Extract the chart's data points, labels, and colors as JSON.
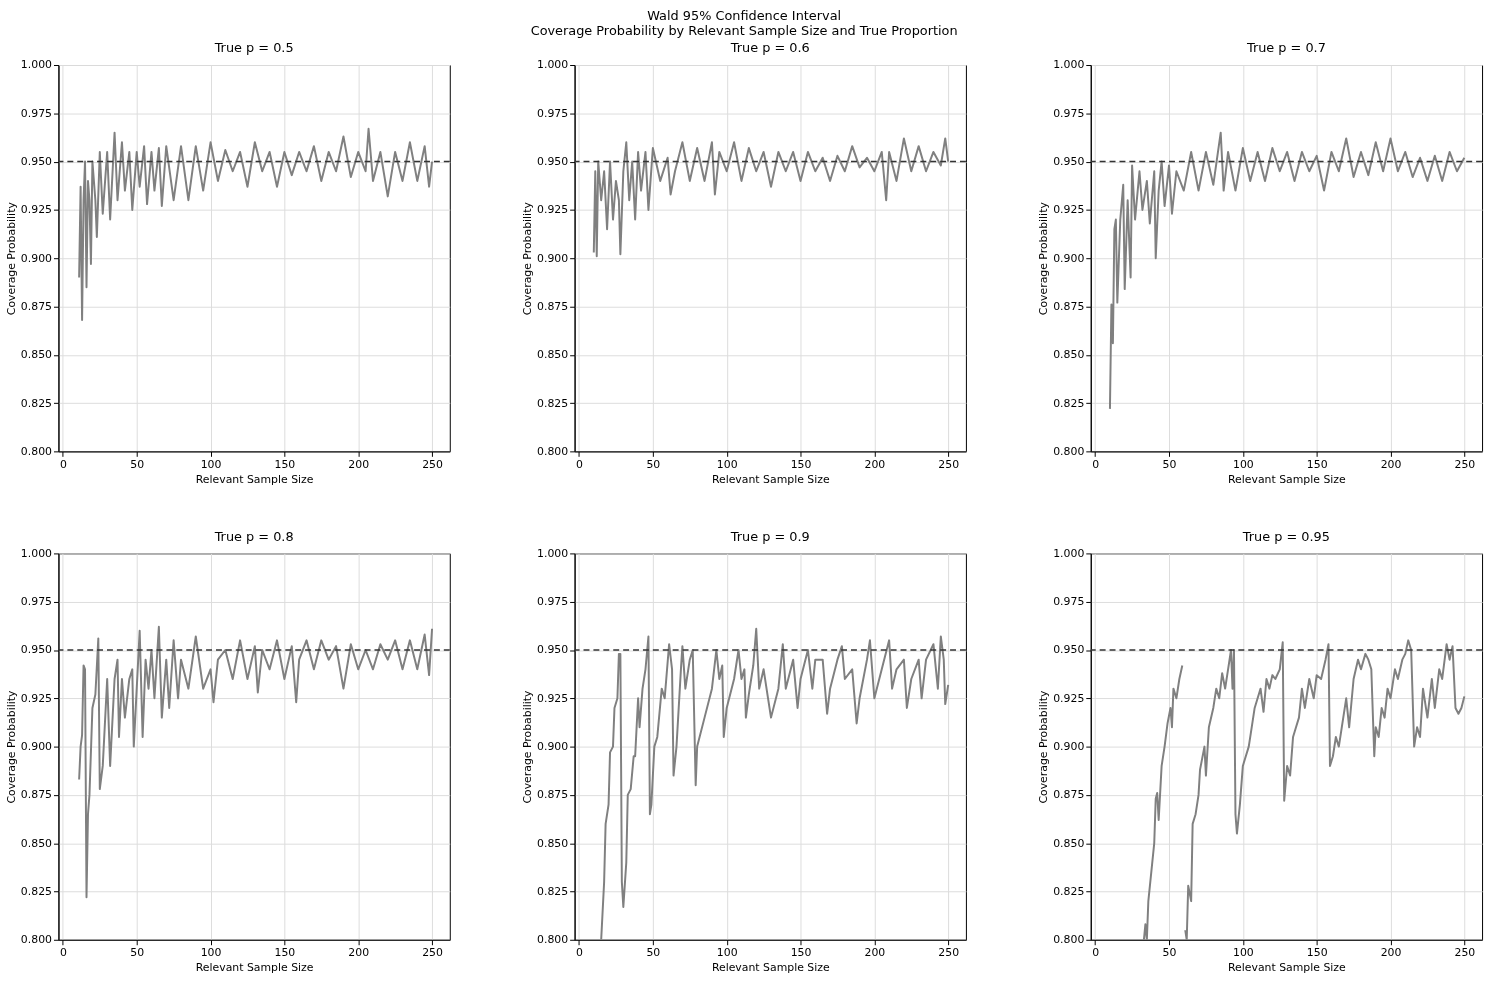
{
  "chart_data": [
    {
      "type": "line",
      "title": "True p = 0.5",
      "xlabel": "Relevant Sample Size",
      "ylabel": "Coverage Probability",
      "annotations": [
        "Wald 95% Confidence Interval",
        "Coverage Probability by Relevant Sample Size and True Proportion"
      ],
      "xlim": [
        -3,
        262
      ],
      "xticks": [
        0,
        50,
        100,
        150,
        200,
        250
      ],
      "ylim": [
        0.8,
        1.0
      ],
      "yticks": [
        {
          "value": 0.8,
          "label": "0.800"
        },
        {
          "value": 0.825,
          "label": "0.825"
        },
        {
          "value": 0.85,
          "label": "0.850"
        },
        {
          "value": 0.875,
          "label": "0.875"
        },
        {
          "value": 0.9,
          "label": "0.900"
        },
        {
          "value": 0.925,
          "label": "0.925"
        },
        {
          "value": 0.95,
          "label": "0.950"
        },
        {
          "value": 0.975,
          "label": "0.975"
        },
        {
          "value": 1.0,
          "label": "1.000"
        }
      ],
      "grid": true,
      "line_style": "solid",
      "ref_lines": [
        {
          "axis": "y",
          "value": 0.95,
          "color": "#333333",
          "line_style": "dashed"
        }
      ],
      "series": [
        {
          "color": "#808080",
          "x": [
            11,
            12,
            13,
            14,
            15,
            16,
            17,
            18,
            19,
            20,
            22,
            23,
            25,
            27,
            30,
            32,
            35,
            37,
            40,
            42,
            45,
            47,
            50,
            52,
            55,
            57,
            60,
            62,
            65,
            67,
            70,
            75,
            80,
            85,
            90,
            95,
            100,
            105,
            110,
            115,
            120,
            125,
            130,
            135,
            140,
            145,
            150,
            155,
            160,
            165,
            170,
            175,
            180,
            185,
            190,
            195,
            200,
            205,
            207,
            210,
            215,
            220,
            225,
            230,
            235,
            240,
            245,
            248,
            250
          ],
          "values": [
            0.89,
            0.937,
            0.868,
            0.93,
            0.95,
            0.885,
            0.94,
            0.93,
            0.897,
            0.95,
            0.93,
            0.911,
            0.955,
            0.923,
            0.955,
            0.92,
            0.965,
            0.93,
            0.96,
            0.935,
            0.955,
            0.925,
            0.955,
            0.937,
            0.958,
            0.928,
            0.955,
            0.935,
            0.957,
            0.927,
            0.958,
            0.93,
            0.958,
            0.93,
            0.958,
            0.935,
            0.96,
            0.94,
            0.956,
            0.945,
            0.955,
            0.937,
            0.96,
            0.945,
            0.955,
            0.937,
            0.955,
            0.943,
            0.955,
            0.945,
            0.958,
            0.94,
            0.955,
            0.945,
            0.963,
            0.942,
            0.955,
            0.945,
            0.967,
            0.94,
            0.955,
            0.932,
            0.955,
            0.94,
            0.96,
            0.94,
            0.958,
            0.937,
            0.95
          ]
        }
      ]
    },
    {
      "type": "line",
      "title": "True p = 0.6",
      "xlabel": "Relevant Sample Size",
      "ylabel": "Coverage Probability",
      "xlim": [
        -3,
        262
      ],
      "xticks": [
        0,
        50,
        100,
        150,
        200,
        250
      ],
      "ylim": [
        0.8,
        1.0
      ],
      "yticks": [
        {
          "value": 0.8,
          "label": "0.800"
        },
        {
          "value": 0.825,
          "label": "0.825"
        },
        {
          "value": 0.85,
          "label": "0.850"
        },
        {
          "value": 0.875,
          "label": "0.875"
        },
        {
          "value": 0.9,
          "label": "0.900"
        },
        {
          "value": 0.925,
          "label": "0.925"
        },
        {
          "value": 0.95,
          "label": "0.950"
        },
        {
          "value": 0.975,
          "label": "0.975"
        },
        {
          "value": 1.0,
          "label": "1.000"
        }
      ],
      "grid": true,
      "line_style": "solid",
      "ref_lines": [
        {
          "axis": "y",
          "value": 0.95,
          "color": "#333333",
          "line_style": "dashed"
        }
      ],
      "series": [
        {
          "color": "#808080",
          "x": [
            10,
            11,
            12,
            13,
            15,
            17,
            19,
            21,
            23,
            25,
            27,
            28,
            30,
            32,
            34,
            36,
            38,
            40,
            42,
            45,
            47,
            50,
            55,
            60,
            62,
            65,
            70,
            75,
            80,
            85,
            90,
            92,
            95,
            100,
            105,
            110,
            115,
            120,
            125,
            130,
            135,
            140,
            145,
            150,
            155,
            160,
            165,
            170,
            175,
            180,
            185,
            190,
            195,
            200,
            205,
            208,
            210,
            215,
            220,
            225,
            230,
            235,
            240,
            245,
            248,
            250
          ],
          "values": [
            0.903,
            0.945,
            0.901,
            0.95,
            0.93,
            0.945,
            0.915,
            0.95,
            0.92,
            0.94,
            0.93,
            0.902,
            0.945,
            0.96,
            0.93,
            0.95,
            0.92,
            0.955,
            0.935,
            0.955,
            0.925,
            0.957,
            0.94,
            0.952,
            0.933,
            0.945,
            0.96,
            0.94,
            0.957,
            0.94,
            0.96,
            0.933,
            0.955,
            0.945,
            0.96,
            0.94,
            0.957,
            0.945,
            0.955,
            0.937,
            0.955,
            0.945,
            0.955,
            0.94,
            0.955,
            0.945,
            0.952,
            0.94,
            0.953,
            0.945,
            0.958,
            0.947,
            0.952,
            0.945,
            0.955,
            0.93,
            0.955,
            0.94,
            0.962,
            0.945,
            0.958,
            0.945,
            0.955,
            0.948,
            0.962,
            0.95
          ]
        }
      ]
    },
    {
      "type": "line",
      "title": "True p = 0.7",
      "xlabel": "Relevant Sample Size",
      "ylabel": "Coverage Probability",
      "xlim": [
        -3,
        262
      ],
      "xticks": [
        0,
        50,
        100,
        150,
        200,
        250
      ],
      "ylim": [
        0.8,
        1.0
      ],
      "yticks": [
        {
          "value": 0.8,
          "label": "0.800"
        },
        {
          "value": 0.825,
          "label": "0.825"
        },
        {
          "value": 0.85,
          "label": "0.850"
        },
        {
          "value": 0.875,
          "label": "0.875"
        },
        {
          "value": 0.9,
          "label": "0.900"
        },
        {
          "value": 0.925,
          "label": "0.925"
        },
        {
          "value": 0.95,
          "label": "0.950"
        },
        {
          "value": 0.975,
          "label": "0.975"
        },
        {
          "value": 1.0,
          "label": "1.000"
        }
      ],
      "grid": true,
      "line_style": "solid",
      "ref_lines": [
        {
          "axis": "y",
          "value": 0.95,
          "color": "#333333",
          "line_style": "dashed"
        }
      ],
      "series": [
        {
          "color": "#808080",
          "x": [
            10,
            11,
            12,
            13,
            14,
            15,
            17,
            19,
            20,
            22,
            24,
            25,
            27,
            30,
            32,
            35,
            37,
            40,
            41,
            43,
            45,
            47,
            50,
            52,
            55,
            60,
            65,
            70,
            75,
            80,
            85,
            87,
            90,
            95,
            100,
            105,
            110,
            115,
            120,
            125,
            130,
            135,
            140,
            145,
            150,
            155,
            160,
            165,
            170,
            175,
            180,
            185,
            190,
            195,
            200,
            205,
            210,
            215,
            220,
            225,
            230,
            235,
            240,
            245,
            250
          ],
          "values": [
            0.822,
            0.876,
            0.856,
            0.915,
            0.92,
            0.877,
            0.92,
            0.938,
            0.884,
            0.93,
            0.89,
            0.948,
            0.92,
            0.945,
            0.925,
            0.94,
            0.918,
            0.945,
            0.9,
            0.935,
            0.95,
            0.927,
            0.948,
            0.923,
            0.945,
            0.935,
            0.955,
            0.935,
            0.955,
            0.938,
            0.965,
            0.935,
            0.955,
            0.935,
            0.957,
            0.94,
            0.955,
            0.94,
            0.957,
            0.945,
            0.955,
            0.94,
            0.955,
            0.945,
            0.953,
            0.935,
            0.955,
            0.945,
            0.962,
            0.942,
            0.955,
            0.943,
            0.96,
            0.945,
            0.962,
            0.945,
            0.955,
            0.942,
            0.952,
            0.94,
            0.953,
            0.94,
            0.955,
            0.945,
            0.952
          ]
        }
      ]
    },
    {
      "type": "line",
      "title": "True p = 0.8",
      "xlabel": "Relevant Sample Size",
      "ylabel": "Coverage Probability",
      "xlim": [
        -3,
        262
      ],
      "xticks": [
        0,
        50,
        100,
        150,
        200,
        250
      ],
      "ylim": [
        0.8,
        1.0
      ],
      "yticks": [
        {
          "value": 0.8,
          "label": "0.800"
        },
        {
          "value": 0.825,
          "label": "0.825"
        },
        {
          "value": 0.85,
          "label": "0.850"
        },
        {
          "value": 0.875,
          "label": "0.875"
        },
        {
          "value": 0.9,
          "label": "0.900"
        },
        {
          "value": 0.925,
          "label": "0.925"
        },
        {
          "value": 0.95,
          "label": "0.950"
        },
        {
          "value": 0.975,
          "label": "0.975"
        },
        {
          "value": 1.0,
          "label": "1.000"
        }
      ],
      "grid": true,
      "line_style": "solid",
      "ref_lines": [
        {
          "axis": "y",
          "value": 0.95,
          "color": "#333333",
          "line_style": "dashed"
        }
      ],
      "series": [
        {
          "color": "#808080",
          "x": [
            11,
            12,
            13,
            14,
            15,
            16,
            17,
            18,
            20,
            22,
            24,
            25,
            27,
            30,
            32,
            35,
            37,
            38,
            40,
            42,
            45,
            47,
            48,
            50,
            52,
            54,
            56,
            58,
            60,
            62,
            65,
            67,
            70,
            72,
            75,
            78,
            80,
            85,
            90,
            95,
            100,
            102,
            105,
            110,
            115,
            120,
            125,
            130,
            132,
            135,
            140,
            145,
            150,
            155,
            158,
            160,
            165,
            170,
            175,
            180,
            185,
            190,
            195,
            200,
            205,
            210,
            215,
            220,
            225,
            230,
            235,
            240,
            245,
            248,
            250
          ],
          "values": [
            0.883,
            0.9,
            0.906,
            0.942,
            0.94,
            0.822,
            0.865,
            0.875,
            0.92,
            0.927,
            0.956,
            0.878,
            0.89,
            0.935,
            0.89,
            0.935,
            0.945,
            0.905,
            0.935,
            0.915,
            0.935,
            0.94,
            0.9,
            0.93,
            0.96,
            0.905,
            0.945,
            0.93,
            0.95,
            0.925,
            0.962,
            0.915,
            0.945,
            0.92,
            0.955,
            0.925,
            0.945,
            0.93,
            0.957,
            0.93,
            0.94,
            0.923,
            0.945,
            0.95,
            0.935,
            0.955,
            0.935,
            0.952,
            0.928,
            0.95,
            0.94,
            0.955,
            0.935,
            0.952,
            0.923,
            0.945,
            0.955,
            0.94,
            0.955,
            0.945,
            0.952,
            0.93,
            0.953,
            0.94,
            0.95,
            0.94,
            0.953,
            0.945,
            0.955,
            0.94,
            0.955,
            0.94,
            0.958,
            0.937,
            0.961
          ]
        }
      ]
    },
    {
      "type": "line",
      "title": "True p = 0.9",
      "xlabel": "Relevant Sample Size",
      "ylabel": "Coverage Probability",
      "xlim": [
        -3,
        262
      ],
      "xticks": [
        0,
        50,
        100,
        150,
        200,
        250
      ],
      "ylim": [
        0.8,
        1.0
      ],
      "yticks": [
        {
          "value": 0.8,
          "label": "0.800"
        },
        {
          "value": 0.825,
          "label": "0.825"
        },
        {
          "value": 0.85,
          "label": "0.850"
        },
        {
          "value": 0.875,
          "label": "0.875"
        },
        {
          "value": 0.9,
          "label": "0.900"
        },
        {
          "value": 0.925,
          "label": "0.925"
        },
        {
          "value": 0.95,
          "label": "0.950"
        },
        {
          "value": 0.975,
          "label": "0.975"
        },
        {
          "value": 1.0,
          "label": "1.000"
        }
      ],
      "grid": true,
      "line_style": "solid",
      "ref_lines": [
        {
          "axis": "y",
          "value": 0.95,
          "color": "#333333",
          "line_style": "dashed"
        }
      ],
      "series": [
        {
          "color": "#808080",
          "x": [
            15,
            17,
            18,
            20,
            21,
            23,
            24,
            26,
            27,
            28,
            29,
            30,
            32,
            33,
            35,
            37,
            38,
            40,
            41,
            43,
            45,
            47,
            48,
            49,
            51,
            53,
            56,
            58,
            61,
            63,
            64,
            66,
            69,
            70,
            72,
            75,
            77,
            79,
            80,
            85,
            90,
            93,
            95,
            97,
            98,
            100,
            105,
            108,
            110,
            112,
            113,
            115,
            118,
            120,
            122,
            125,
            128,
            130,
            135,
            138,
            140,
            145,
            148,
            150,
            155,
            158,
            160,
            165,
            168,
            170,
            175,
            178,
            180,
            185,
            188,
            190,
            195,
            197,
            200,
            205,
            210,
            212,
            215,
            220,
            222,
            225,
            230,
            232,
            235,
            240,
            243,
            245,
            247,
            248,
            250
          ],
          "values": [
            0.8,
            0.83,
            0.86,
            0.87,
            0.897,
            0.9,
            0.92,
            0.925,
            0.948,
            0.948,
            0.83,
            0.817,
            0.84,
            0.875,
            0.878,
            0.895,
            0.895,
            0.925,
            0.91,
            0.93,
            0.94,
            0.957,
            0.865,
            0.87,
            0.9,
            0.905,
            0.93,
            0.925,
            0.953,
            0.94,
            0.885,
            0.9,
            0.94,
            0.952,
            0.93,
            0.945,
            0.95,
            0.88,
            0.9,
            0.915,
            0.93,
            0.95,
            0.935,
            0.942,
            0.905,
            0.92,
            0.935,
            0.95,
            0.935,
            0.94,
            0.915,
            0.927,
            0.942,
            0.961,
            0.93,
            0.94,
            0.925,
            0.915,
            0.93,
            0.953,
            0.93,
            0.945,
            0.92,
            0.935,
            0.95,
            0.93,
            0.945,
            0.945,
            0.917,
            0.93,
            0.945,
            0.952,
            0.935,
            0.94,
            0.912,
            0.925,
            0.945,
            0.955,
            0.925,
            0.94,
            0.955,
            0.93,
            0.94,
            0.945,
            0.92,
            0.935,
            0.945,
            0.925,
            0.945,
            0.953,
            0.93,
            0.957,
            0.945,
            0.922,
            0.932
          ]
        }
      ]
    },
    {
      "type": "line",
      "title": "True p = 0.95",
      "xlabel": "Relevant Sample Size",
      "ylabel": "Coverage Probability",
      "xlim": [
        -3,
        262
      ],
      "xticks": [
        0,
        50,
        100,
        150,
        200,
        250
      ],
      "ylim": [
        0.8,
        1.0
      ],
      "yticks": [
        {
          "value": 0.8,
          "label": "0.800"
        },
        {
          "value": 0.825,
          "label": "0.825"
        },
        {
          "value": 0.85,
          "label": "0.850"
        },
        {
          "value": 0.875,
          "label": "0.875"
        },
        {
          "value": 0.9,
          "label": "0.900"
        },
        {
          "value": 0.925,
          "label": "0.925"
        },
        {
          "value": 0.95,
          "label": "0.950"
        },
        {
          "value": 0.975,
          "label": "0.975"
        },
        {
          "value": 1.0,
          "label": "1.000"
        }
      ],
      "grid": true,
      "line_style": "solid",
      "ref_lines": [
        {
          "axis": "y",
          "value": 0.95,
          "color": "#333333",
          "line_style": "dashed"
        }
      ],
      "series": [
        {
          "color": "#808080",
          "x": [
            33,
            34,
            35,
            36,
            38,
            40,
            41,
            42,
            43,
            45,
            47,
            49,
            51,
            52,
            53,
            55,
            57,
            59,
            60,
            61,
            62,
            63,
            65,
            66,
            68,
            70,
            71,
            74,
            75,
            77,
            80,
            82,
            84,
            86,
            88,
            90,
            92,
            93,
            94,
            95,
            96,
            98,
            100,
            102,
            104,
            106,
            108,
            110,
            112,
            114,
            116,
            118,
            120,
            122,
            125,
            127,
            128,
            130,
            132,
            134,
            136,
            138,
            140,
            142,
            145,
            148,
            150,
            153,
            156,
            158,
            159,
            161,
            163,
            165,
            167,
            170,
            172,
            175,
            178,
            180,
            183,
            185,
            187,
            189,
            190,
            192,
            194,
            196,
            198,
            200,
            203,
            205,
            208,
            210,
            212,
            214,
            216,
            218,
            220,
            222,
            225,
            228,
            230,
            233,
            235,
            238,
            240,
            242,
            244,
            246,
            248,
            250
          ],
          "values": [
            0.8,
            0.808,
            0.8,
            0.82,
            0.835,
            0.85,
            0.873,
            0.876,
            0.862,
            0.89,
            0.9,
            0.912,
            0.92,
            0.91,
            0.93,
            0.925,
            0.935,
            0.942,
            null,
            0.805,
            0.8,
            0.828,
            0.82,
            0.86,
            0.865,
            0.875,
            0.888,
            0.9,
            0.885,
            0.91,
            0.92,
            0.93,
            0.925,
            0.938,
            0.93,
            0.94,
            0.95,
            0.93,
            0.95,
            0.865,
            0.855,
            0.87,
            0.89,
            0.895,
            0.9,
            0.91,
            0.92,
            0.925,
            0.93,
            0.918,
            0.935,
            0.93,
            0.937,
            0.935,
            0.94,
            0.954,
            0.872,
            0.89,
            0.885,
            0.905,
            0.91,
            0.915,
            0.93,
            0.92,
            0.935,
            0.925,
            0.937,
            0.935,
            0.945,
            0.953,
            0.89,
            0.895,
            0.905,
            0.9,
            0.91,
            0.925,
            0.91,
            0.935,
            0.945,
            0.94,
            0.948,
            0.945,
            0.94,
            0.895,
            0.91,
            0.905,
            0.92,
            0.915,
            0.93,
            0.925,
            0.94,
            0.935,
            0.945,
            0.948,
            0.955,
            0.95,
            0.9,
            0.91,
            0.905,
            0.93,
            0.915,
            0.935,
            0.92,
            0.94,
            0.935,
            0.953,
            0.945,
            0.952,
            0.92,
            0.917,
            0.92,
            0.926
          ]
        }
      ]
    }
  ]
}
